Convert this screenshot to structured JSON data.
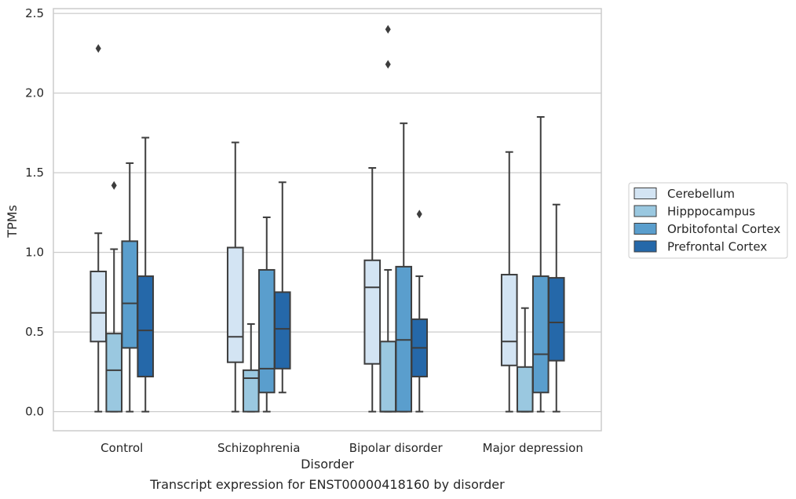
{
  "chart_data": {
    "type": "boxplot",
    "xlabel": "Disorder",
    "ylabel": "TPMs",
    "caption": "Transcript expression for ENST00000418160 by disorder",
    "categories": [
      "Control",
      "Schizophrenia",
      "Bipolar disorder",
      "Major depression"
    ],
    "ylim": [
      -0.12,
      2.53
    ],
    "yticks": [
      "0.0",
      "0.5",
      "1.0",
      "1.5",
      "2.0",
      "2.5"
    ],
    "grid": "horizontal",
    "legend_position": "right",
    "series": [
      {
        "name": "Cerebellum",
        "color": "#d3e4f3",
        "boxes": [
          {
            "whislo": 0.0,
            "q1": 0.44,
            "med": 0.62,
            "q3": 0.88,
            "whishi": 1.12,
            "fliers": [
              2.28
            ]
          },
          {
            "whislo": 0.0,
            "q1": 0.31,
            "med": 0.47,
            "q3": 1.03,
            "whishi": 1.69,
            "fliers": []
          },
          {
            "whislo": 0.0,
            "q1": 0.3,
            "med": 0.78,
            "q3": 0.95,
            "whishi": 1.53,
            "fliers": []
          },
          {
            "whislo": 0.0,
            "q1": 0.29,
            "med": 0.44,
            "q3": 0.86,
            "whishi": 1.63,
            "fliers": []
          }
        ]
      },
      {
        "name": "Hipppocampus",
        "color": "#9ac8e0",
        "boxes": [
          {
            "whislo": 0.0,
            "q1": 0.0,
            "med": 0.26,
            "q3": 0.49,
            "whishi": 1.02,
            "fliers": [
              1.42
            ]
          },
          {
            "whislo": 0.0,
            "q1": 0.0,
            "med": 0.21,
            "q3": 0.26,
            "whishi": 0.55,
            "fliers": []
          },
          {
            "whislo": 0.0,
            "q1": 0.0,
            "med": 0.0,
            "q3": 0.44,
            "whishi": 0.89,
            "fliers": [
              2.18,
              2.4
            ]
          },
          {
            "whislo": 0.0,
            "q1": 0.0,
            "med": 0.0,
            "q3": 0.28,
            "whishi": 0.65,
            "fliers": []
          }
        ]
      },
      {
        "name": "Orbitofontal Cortex",
        "color": "#5a9ecd",
        "boxes": [
          {
            "whislo": 0.0,
            "q1": 0.4,
            "med": 0.68,
            "q3": 1.07,
            "whishi": 1.56,
            "fliers": []
          },
          {
            "whislo": 0.0,
            "q1": 0.12,
            "med": 0.27,
            "q3": 0.89,
            "whishi": 1.22,
            "fliers": []
          },
          {
            "whislo": 0.0,
            "q1": 0.0,
            "med": 0.45,
            "q3": 0.91,
            "whishi": 1.81,
            "fliers": []
          },
          {
            "whislo": 0.0,
            "q1": 0.12,
            "med": 0.36,
            "q3": 0.85,
            "whishi": 1.85,
            "fliers": []
          }
        ]
      },
      {
        "name": "Prefrontal Cortex",
        "color": "#2568a9",
        "boxes": [
          {
            "whislo": 0.0,
            "q1": 0.22,
            "med": 0.51,
            "q3": 0.85,
            "whishi": 1.72,
            "fliers": []
          },
          {
            "whislo": 0.12,
            "q1": 0.27,
            "med": 0.52,
            "q3": 0.75,
            "whishi": 1.44,
            "fliers": []
          },
          {
            "whislo": 0.0,
            "q1": 0.22,
            "med": 0.4,
            "q3": 0.58,
            "whishi": 0.85,
            "fliers": [
              1.24
            ]
          },
          {
            "whislo": 0.0,
            "q1": 0.32,
            "med": 0.56,
            "q3": 0.84,
            "whishi": 1.3,
            "fliers": []
          }
        ]
      }
    ]
  }
}
